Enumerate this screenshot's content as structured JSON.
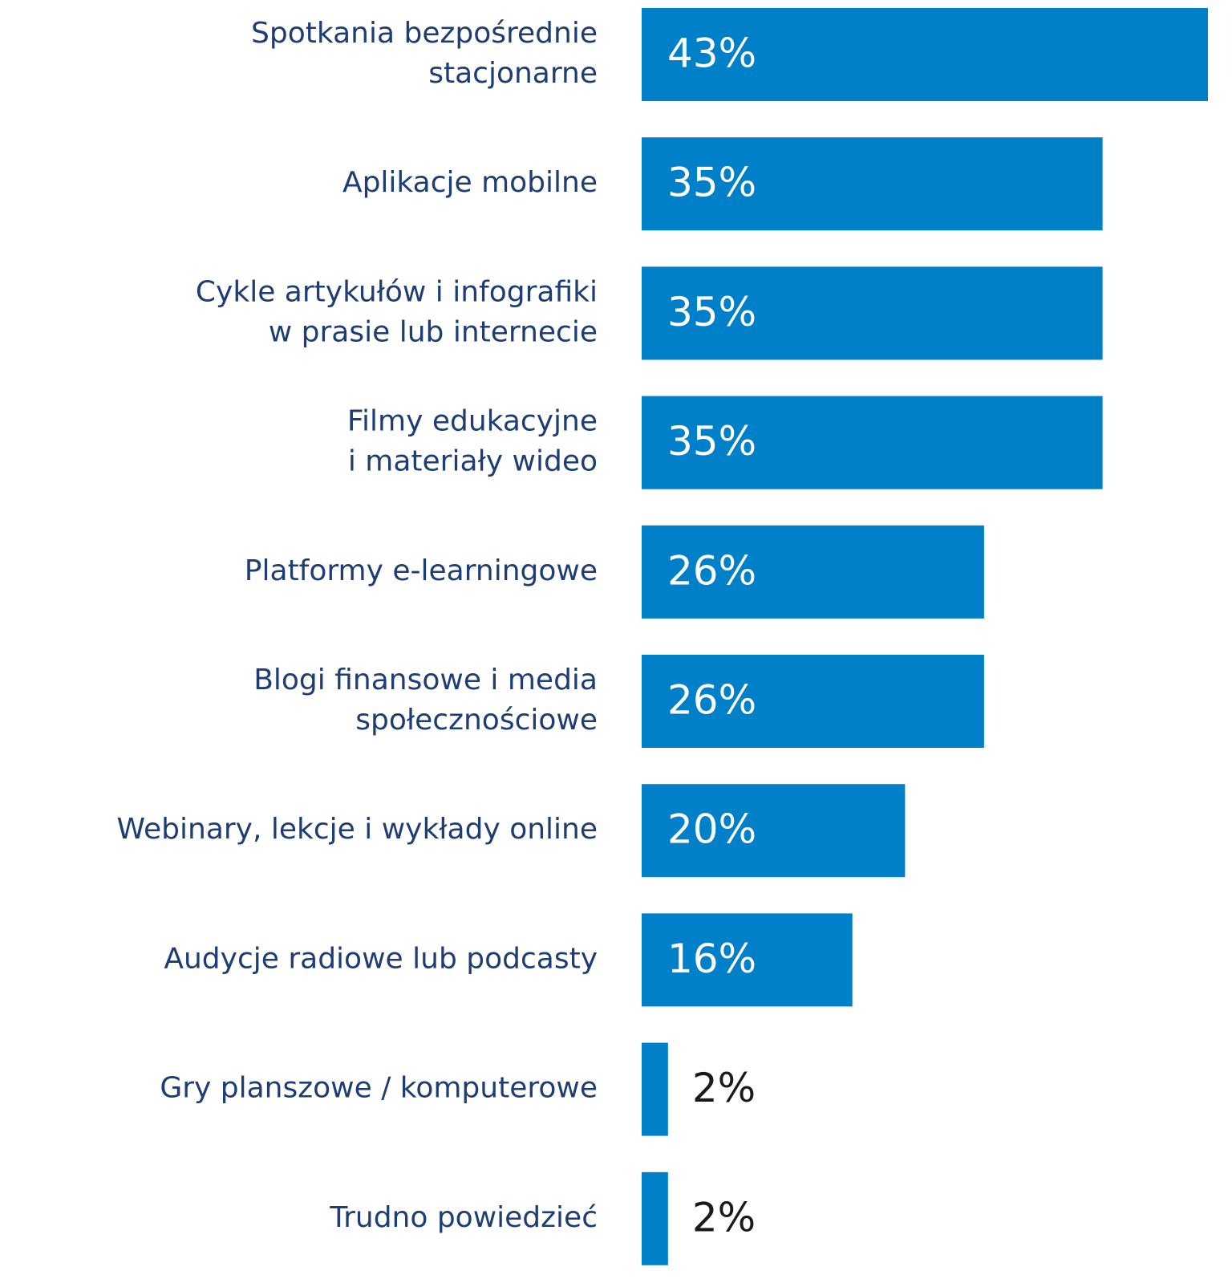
{
  "chart_data": {
    "type": "hbar",
    "categories": [
      [
        "Spotkania bezpośrednie",
        "stacjonarne"
      ],
      [
        "Aplikacje mobilne"
      ],
      [
        "Cykle artykułów i infografiki",
        "w prasie lub internecie"
      ],
      [
        "Filmy edukacyjne",
        "i materiały wideo"
      ],
      [
        "Platformy e-learningowe"
      ],
      [
        "Blogi finansowe i media",
        "społecznościowe"
      ],
      [
        "Webinary, lekcje i wykłady online"
      ],
      [
        "Audycje radiowe lub podcasty"
      ],
      [
        "Gry planszowe / komputerowe"
      ],
      [
        "Trudno powiedzieć"
      ]
    ],
    "values": [
      43,
      35,
      35,
      35,
      26,
      26,
      20,
      16,
      2,
      2
    ],
    "value_labels": [
      "43%",
      "35%",
      "35%",
      "35%",
      "26%",
      "26%",
      "20%",
      "16%",
      "2%",
      "2%"
    ],
    "color": "#0080c9"
  }
}
